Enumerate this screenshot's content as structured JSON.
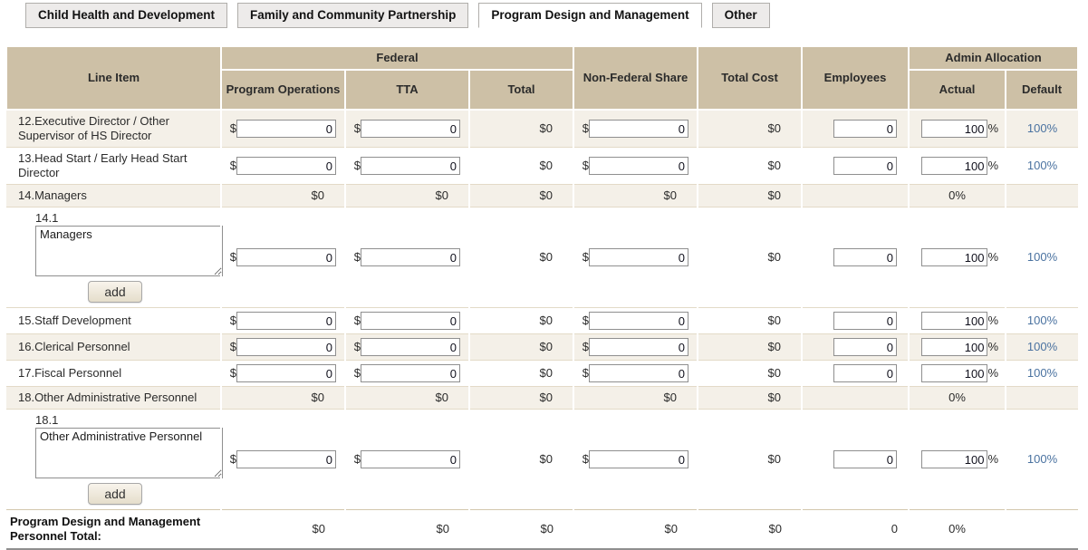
{
  "colors": {
    "header_bg": "#cdc0a6",
    "row_shaded_bg": "#f4f0e8",
    "link_blue": "#4a72a0"
  },
  "symbols": {
    "currency": "$",
    "percent": "%"
  },
  "tabs": [
    {
      "label": "Child Health and Development",
      "active": false
    },
    {
      "label": "Family and Community Partnership",
      "active": false
    },
    {
      "label": "Program Design and Management",
      "active": true
    },
    {
      "label": "Other",
      "active": false
    }
  ],
  "header": {
    "line_item": "Line Item",
    "federal": "Federal",
    "program_operations": "Program Operations",
    "tta": "TTA",
    "total": "Total",
    "non_federal_share": "Non-Federal Share",
    "total_cost": "Total Cost",
    "employees": "Employees",
    "admin_allocation": "Admin Allocation",
    "actual": "Actual",
    "default": "Default"
  },
  "rows": [
    {
      "type": "entry",
      "shaded": true,
      "label": "12.Executive Director / Other Supervisor of HS Director",
      "program_operations_input": "0",
      "tta_input": "0",
      "federal_total": "$0",
      "non_federal_input": "0",
      "total_cost": "$0",
      "employees_input": "0",
      "actual_input": "100",
      "default_link": "100%"
    },
    {
      "type": "entry",
      "shaded": false,
      "label": "13.Head Start / Early Head Start Director",
      "program_operations_input": "0",
      "tta_input": "0",
      "federal_total": "$0",
      "non_federal_input": "0",
      "total_cost": "$0",
      "employees_input": "0",
      "actual_input": "100",
      "default_link": "100%"
    },
    {
      "type": "summary",
      "shaded": true,
      "label": "14.Managers",
      "program_operations": "$0",
      "tta": "$0",
      "federal_total": "$0",
      "non_federal": "$0",
      "total_cost": "$0",
      "actual": "0%"
    },
    {
      "type": "sub_entry",
      "shaded": false,
      "sub_number": "14.1",
      "textarea_value": "Managers",
      "add_button": "add",
      "program_operations_input": "0",
      "tta_input": "0",
      "federal_total": "$0",
      "non_federal_input": "0",
      "total_cost": "$0",
      "employees_input": "0",
      "actual_input": "100",
      "default_link": "100%"
    },
    {
      "type": "entry",
      "shaded": false,
      "label": "15.Staff Development",
      "program_operations_input": "0",
      "tta_input": "0",
      "federal_total": "$0",
      "non_federal_input": "0",
      "total_cost": "$0",
      "employees_input": "0",
      "actual_input": "100",
      "default_link": "100%"
    },
    {
      "type": "entry",
      "shaded": true,
      "label": "16.Clerical Personnel",
      "program_operations_input": "0",
      "tta_input": "0",
      "federal_total": "$0",
      "non_federal_input": "0",
      "total_cost": "$0",
      "employees_input": "0",
      "actual_input": "100",
      "default_link": "100%"
    },
    {
      "type": "entry",
      "shaded": false,
      "label": "17.Fiscal Personnel",
      "program_operations_input": "0",
      "tta_input": "0",
      "federal_total": "$0",
      "non_federal_input": "0",
      "total_cost": "$0",
      "employees_input": "0",
      "actual_input": "100",
      "default_link": "100%"
    },
    {
      "type": "summary",
      "shaded": true,
      "label": "18.Other Administrative Personnel",
      "program_operations": "$0",
      "tta": "$0",
      "federal_total": "$0",
      "non_federal": "$0",
      "total_cost": "$0",
      "actual": "0%"
    },
    {
      "type": "sub_entry",
      "shaded": false,
      "sub_number": "18.1",
      "textarea_value": "Other Administrative Personnel",
      "add_button": "add",
      "program_operations_input": "0",
      "tta_input": "0",
      "federal_total": "$0",
      "non_federal_input": "0",
      "total_cost": "$0",
      "employees_input": "0",
      "actual_input": "100",
      "default_link": "100%"
    }
  ],
  "total_row": {
    "label": "Program Design and Management Personnel Total:",
    "program_operations": "$0",
    "tta": "$0",
    "federal_total": "$0",
    "non_federal": "$0",
    "total_cost": "$0",
    "employees": "0",
    "actual": "0%"
  }
}
